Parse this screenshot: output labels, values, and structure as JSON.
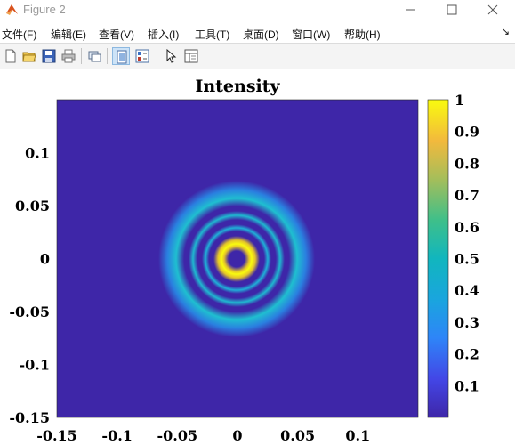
{
  "window": {
    "title": "Figure 2"
  },
  "menu": {
    "file": "文件(F)",
    "edit": "编辑(E)",
    "view": "查看(V)",
    "insert": "插入(I)",
    "tools": "工具(T)",
    "desktop": "桌面(D)",
    "window": "窗口(W)",
    "help": "帮助(H)",
    "overflow_arrow": "↘"
  },
  "toolbar": {
    "icons": [
      "new-figure-icon",
      "open-file-icon",
      "save-icon",
      "print-icon",
      "link-plot-icon",
      "hide-plot-tools-icon",
      "show-plot-tools-icon",
      "edit-plot-arrow-icon",
      "property-inspector-icon"
    ]
  },
  "colors": {
    "background_dark": "#3e26a8",
    "ring_cyan": "#1fbfd0",
    "ring_yellow": "#f9fb0e",
    "colormap": "parula"
  },
  "chart_data": {
    "type": "heatmap",
    "title": "Intensity",
    "xlabel": "",
    "ylabel": "",
    "xlim": [
      -0.15,
      0.15
    ],
    "ylim": [
      -0.15,
      0.15
    ],
    "x_ticks": [
      "-0.15",
      "-0.1",
      "-0.05",
      "0",
      "0.05",
      "0.1"
    ],
    "y_ticks": [
      "0.1",
      "0.05",
      "0",
      "-0.05",
      "-0.1",
      "-0.15"
    ],
    "colorbar": {
      "range": [
        0,
        1
      ],
      "ticks": [
        "1",
        "0.9",
        "0.8",
        "0.7",
        "0.6",
        "0.5",
        "0.4",
        "0.3",
        "0.2",
        "0.1"
      ],
      "colormap": "parula"
    },
    "rings": [
      {
        "radius": 0.021,
        "intensity": 1.0
      },
      {
        "radius": 0.039,
        "intensity": 0.58
      },
      {
        "radius": 0.053,
        "intensity": 0.5
      },
      {
        "radius": 0.067,
        "intensity": 0.44
      }
    ],
    "grid": false
  }
}
